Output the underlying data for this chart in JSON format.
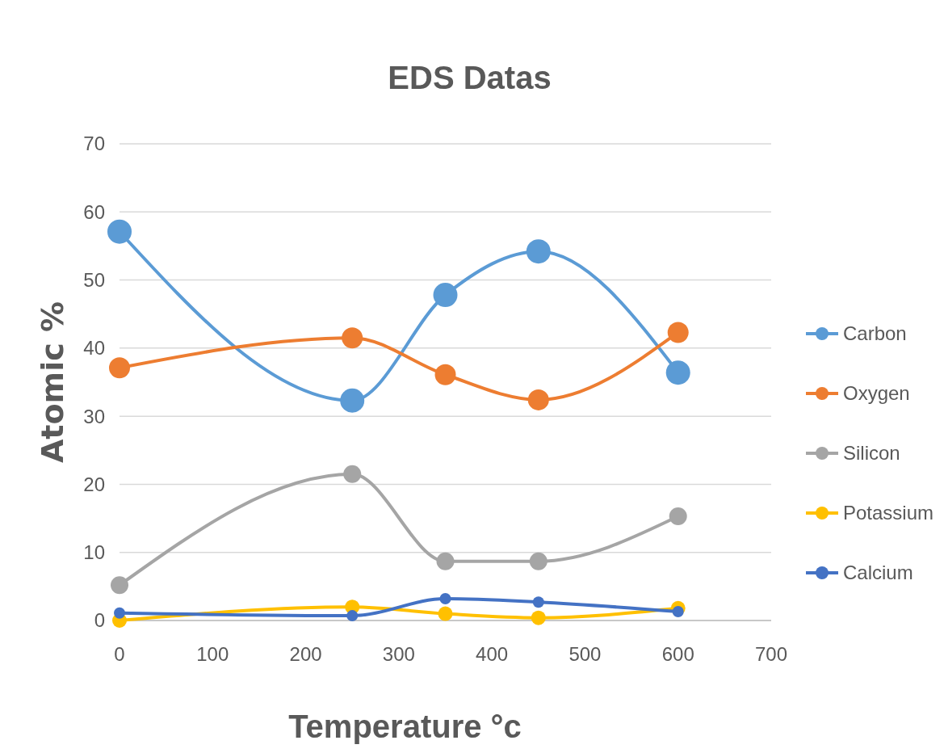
{
  "chart_data": {
    "type": "line",
    "title": "EDS Datas",
    "xlabel": "Temperature °c",
    "ylabel": "Atomic %",
    "x": [
      0,
      250,
      350,
      450,
      600
    ],
    "series": [
      {
        "name": "Carbon",
        "color": "#5b9bd5",
        "values": [
          57.1,
          32.3,
          47.8,
          54.2,
          36.4
        ]
      },
      {
        "name": "Oxygen",
        "color": "#ed7d31",
        "values": [
          37.1,
          41.5,
          36.1,
          32.4,
          42.3
        ]
      },
      {
        "name": "Silicon",
        "color": "#a5a5a5",
        "values": [
          5.2,
          21.5,
          8.7,
          8.7,
          15.3
        ]
      },
      {
        "name": "Potassium",
        "color": "#ffc000",
        "values": [
          0,
          2.0,
          1.0,
          0.4,
          1.8
        ]
      },
      {
        "name": "Calcium",
        "color": "#4472c4",
        "values": [
          1.1,
          0.7,
          3.2,
          2.7,
          1.3
        ]
      }
    ],
    "xlim": [
      0,
      700
    ],
    "xticks": [
      0,
      100,
      200,
      300,
      400,
      500,
      600,
      700
    ],
    "ylim": [
      0,
      70
    ],
    "yticks": [
      0,
      10,
      20,
      30,
      40,
      50,
      60,
      70
    ],
    "grid": "y",
    "legend": "right",
    "marker": "circle",
    "line_style": "solid"
  }
}
